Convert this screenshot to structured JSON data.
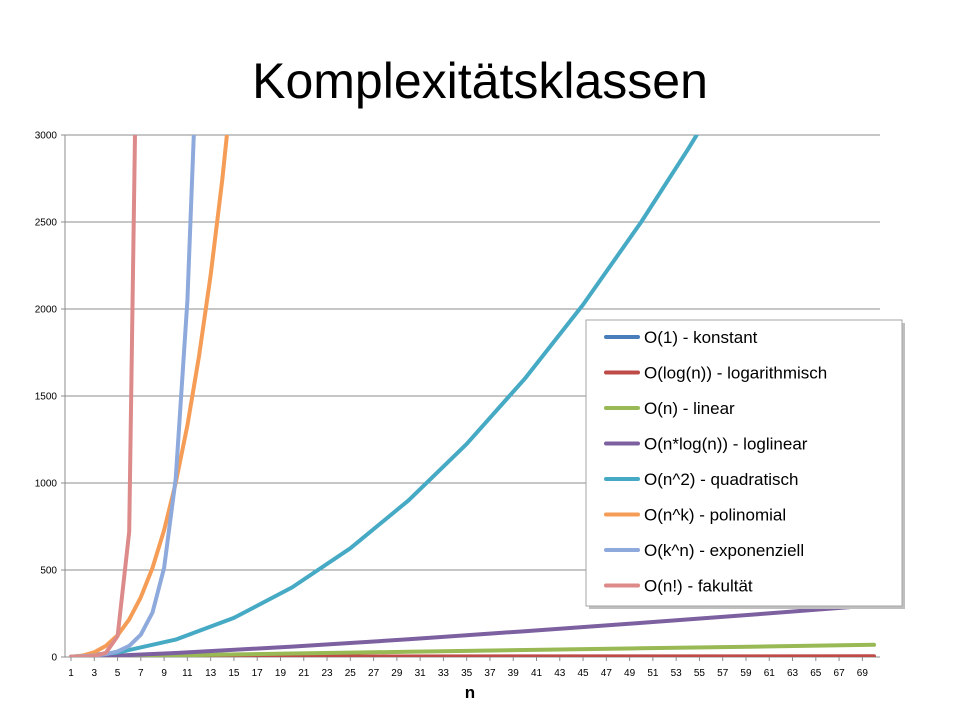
{
  "title": "Komplexitätsklassen",
  "chart_data": {
    "type": "line",
    "xlabel": "n",
    "ylabel": "",
    "xlim": [
      1,
      70
    ],
    "ylim": [
      0,
      3000
    ],
    "y_ticks": [
      "0",
      "500",
      "1000",
      "1500",
      "2000",
      "2500",
      "3000"
    ],
    "x_ticks": [
      "1",
      "3",
      "5",
      "7",
      "9",
      "11",
      "13",
      "15",
      "17",
      "19",
      "21",
      "23",
      "25",
      "27",
      "29",
      "31",
      "33",
      "35",
      "37",
      "39",
      "41",
      "43",
      "45",
      "47",
      "49",
      "51",
      "53",
      "55",
      "57",
      "59",
      "61",
      "63",
      "65",
      "67",
      "69"
    ],
    "grid": "horizontal",
    "legend_position": "right",
    "series": [
      {
        "name": "O(1) - konstant",
        "color": "#4A7EBB",
        "points": [
          [
            1,
            1
          ],
          [
            70,
            1
          ]
        ]
      },
      {
        "name": "O(log(n)) - logarithmisch",
        "color": "#BE4B48",
        "points": [
          [
            1,
            0
          ],
          [
            2,
            0.7
          ],
          [
            5,
            1.6
          ],
          [
            10,
            2.3
          ],
          [
            20,
            3.0
          ],
          [
            40,
            3.7
          ],
          [
            70,
            4.2
          ]
        ]
      },
      {
        "name": "O(n) - linear",
        "color": "#98B954",
        "points": [
          [
            1,
            1
          ],
          [
            10,
            10
          ],
          [
            20,
            20
          ],
          [
            30,
            30
          ],
          [
            40,
            40
          ],
          [
            50,
            50
          ],
          [
            60,
            60
          ],
          [
            70,
            70
          ]
        ]
      },
      {
        "name": "O(n*log(n)) - loglinear",
        "color": "#7D60A0",
        "points": [
          [
            1,
            0
          ],
          [
            5,
            8
          ],
          [
            10,
            23
          ],
          [
            20,
            60
          ],
          [
            30,
            102
          ],
          [
            40,
            148
          ],
          [
            50,
            196
          ],
          [
            60,
            246
          ],
          [
            70,
            297
          ]
        ]
      },
      {
        "name": "O(n^2) - quadratisch",
        "color": "#46AAC5",
        "points": [
          [
            1,
            1
          ],
          [
            5,
            25
          ],
          [
            10,
            100
          ],
          [
            15,
            225
          ],
          [
            20,
            400
          ],
          [
            25,
            625
          ],
          [
            30,
            900
          ],
          [
            35,
            1225
          ],
          [
            40,
            1600
          ],
          [
            45,
            2025
          ],
          [
            50,
            2500
          ],
          [
            54,
            2916
          ],
          [
            55,
            3025
          ]
        ]
      },
      {
        "name": "O(n^k) - polinomial",
        "color": "#F59D56",
        "points": [
          [
            1,
            1
          ],
          [
            2,
            8
          ],
          [
            3,
            27
          ],
          [
            4,
            64
          ],
          [
            5,
            125
          ],
          [
            6,
            216
          ],
          [
            7,
            343
          ],
          [
            8,
            512
          ],
          [
            9,
            729
          ],
          [
            10,
            1000
          ],
          [
            11,
            1331
          ],
          [
            12,
            1728
          ],
          [
            13,
            2197
          ],
          [
            14,
            2744
          ],
          [
            14.4,
            3000
          ]
        ]
      },
      {
        "name": "O(k^n) - exponenziell",
        "color": "#8EA9DB",
        "points": [
          [
            1,
            2
          ],
          [
            2,
            4
          ],
          [
            3,
            8
          ],
          [
            4,
            16
          ],
          [
            5,
            32
          ],
          [
            6,
            64
          ],
          [
            7,
            128
          ],
          [
            8,
            256
          ],
          [
            9,
            512
          ],
          [
            10,
            1024
          ],
          [
            11,
            2048
          ],
          [
            11.55,
            3000
          ]
        ]
      },
      {
        "name": "O(n!) - fakultät",
        "color": "#DD8A8A",
        "points": [
          [
            1,
            1
          ],
          [
            2,
            2
          ],
          [
            3,
            6
          ],
          [
            4,
            24
          ],
          [
            5,
            120
          ],
          [
            6,
            720
          ],
          [
            6.5,
            3000
          ]
        ]
      }
    ]
  }
}
